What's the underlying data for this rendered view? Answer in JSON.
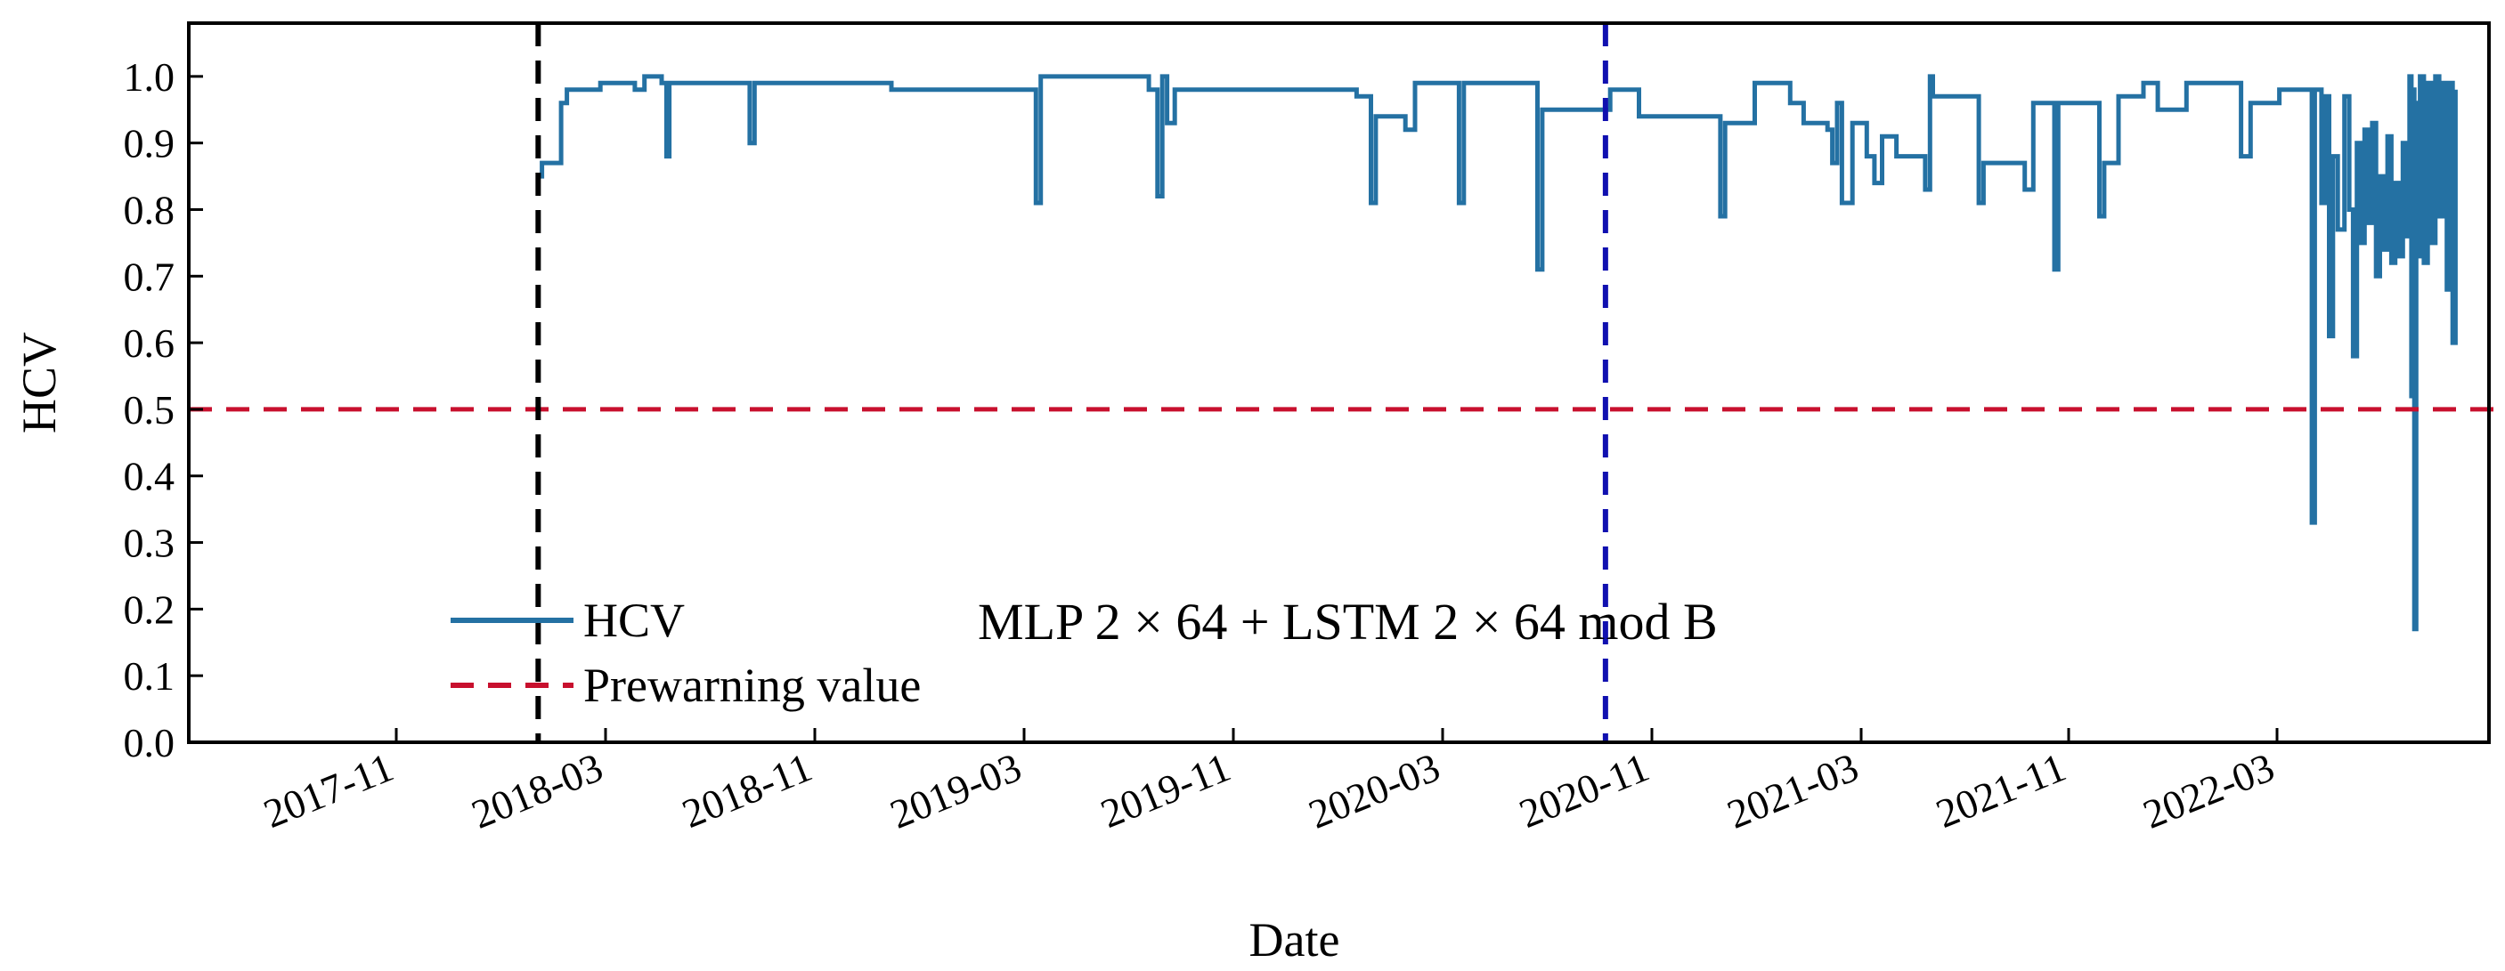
{
  "chart_data": {
    "type": "line",
    "title": "",
    "annotation": "MLP 2 × 64 + LSTM 2 × 64 mod B",
    "xlabel": "Date",
    "ylabel": "HCV",
    "x_tick_labels": [
      "2017-11",
      "2018-03",
      "2018-11",
      "2019-03",
      "2019-11",
      "2020-03",
      "2020-11",
      "2021-03",
      "2021-11",
      "2022-03"
    ],
    "y_tick_labels": [
      "0.0",
      "0.1",
      "0.2",
      "0.3",
      "0.4",
      "0.5",
      "0.6",
      "0.7",
      "0.8",
      "0.9",
      "1.0"
    ],
    "ylim": [
      0.0,
      1.08
    ],
    "xlim": [
      "2016-11-01",
      "2023-06-01"
    ],
    "grid": false,
    "legend_position": "lower-left",
    "colors": {
      "series": "#2471a3",
      "prewarning": "#c8102e",
      "train_start": "#000000",
      "test_start": "#1010b0"
    },
    "series": [
      {
        "name": "HCV",
        "points": [
          [
            "2017-11-01",
            0.85
          ],
          [
            "2017-11-05",
            0.87
          ],
          [
            "2017-11-25",
            0.96
          ],
          [
            "2017-12-01",
            0.98
          ],
          [
            "2018-01-05",
            0.99
          ],
          [
            "2018-02-10",
            0.98
          ],
          [
            "2018-02-20",
            1.0
          ],
          [
            "2018-03-10",
            0.99
          ],
          [
            "2018-03-15",
            0.88
          ],
          [
            "2018-03-18",
            0.99
          ],
          [
            "2018-06-10",
            0.9
          ],
          [
            "2018-06-15",
            0.99
          ],
          [
            "2018-11-01",
            0.99
          ],
          [
            "2018-11-05",
            0.98
          ],
          [
            "2019-03-20",
            0.98
          ],
          [
            "2019-04-05",
            0.81
          ],
          [
            "2019-04-10",
            1.0
          ],
          [
            "2019-08-01",
            0.98
          ],
          [
            "2019-08-10",
            0.82
          ],
          [
            "2019-08-15",
            1.0
          ],
          [
            "2019-08-20",
            0.93
          ],
          [
            "2019-08-28",
            0.98
          ],
          [
            "2020-03-01",
            0.98
          ],
          [
            "2020-03-05",
            0.97
          ],
          [
            "2020-03-15",
            0.97
          ],
          [
            "2020-03-20",
            0.81
          ],
          [
            "2020-03-25",
            0.94
          ],
          [
            "2020-04-20",
            0.94
          ],
          [
            "2020-04-25",
            0.92
          ],
          [
            "2020-05-05",
            0.99
          ],
          [
            "2020-06-15",
            0.99
          ],
          [
            "2020-06-20",
            0.81
          ],
          [
            "2020-06-25",
            0.99
          ],
          [
            "2020-09-05",
            0.99
          ],
          [
            "2020-09-10",
            0.71
          ],
          [
            "2020-09-15",
            0.95
          ],
          [
            "2020-11-20",
            0.95
          ],
          [
            "2020-11-25",
            0.98
          ],
          [
            "2020-12-25",
            0.94
          ],
          [
            "2021-03-15",
            0.94
          ],
          [
            "2021-03-20",
            0.79
          ],
          [
            "2021-03-25",
            0.93
          ],
          [
            "2021-04-20",
            0.93
          ],
          [
            "2021-04-25",
            0.99
          ],
          [
            "2021-06-01",
            0.96
          ],
          [
            "2021-06-15",
            0.93
          ],
          [
            "2021-07-10",
            0.92
          ],
          [
            "2021-07-15",
            0.87
          ],
          [
            "2021-07-20",
            0.96
          ],
          [
            "2021-07-25",
            0.81
          ],
          [
            "2021-08-05",
            0.93
          ],
          [
            "2021-08-20",
            0.88
          ],
          [
            "2021-08-28",
            0.84
          ],
          [
            "2021-09-05",
            0.91
          ],
          [
            "2021-09-20",
            0.88
          ],
          [
            "2021-10-15",
            0.88
          ],
          [
            "2021-10-20",
            0.83
          ],
          [
            "2021-10-25",
            1.0
          ],
          [
            "2021-10-28",
            0.97
          ],
          [
            "2021-12-10",
            0.97
          ],
          [
            "2021-12-15",
            0.81
          ],
          [
            "2021-12-20",
            0.87
          ],
          [
            "2022-01-25",
            0.87
          ],
          [
            "2022-02-01",
            0.83
          ],
          [
            "2022-02-10",
            0.96
          ],
          [
            "2022-03-01",
            0.96
          ],
          [
            "2022-03-04",
            0.71
          ],
          [
            "2022-03-08",
            0.96
          ],
          [
            "2022-04-15",
            0.96
          ],
          [
            "2022-04-20",
            0.79
          ],
          [
            "2022-04-25",
            0.87
          ],
          [
            "2022-05-10",
            0.97
          ],
          [
            "2022-06-05",
            0.99
          ],
          [
            "2022-06-20",
            0.95
          ],
          [
            "2022-07-20",
            0.99
          ],
          [
            "2022-09-10",
            0.99
          ],
          [
            "2022-09-15",
            0.88
          ],
          [
            "2022-09-25",
            0.96
          ],
          [
            "2022-10-25",
            0.98
          ],
          [
            "2022-11-25",
            0.98
          ],
          [
            "2022-11-28",
            0.33
          ],
          [
            "2022-12-01",
            0.98
          ],
          [
            "2022-12-08",
            0.81
          ],
          [
            "2022-12-12",
            0.97
          ],
          [
            "2022-12-16",
            0.61
          ],
          [
            "2022-12-20",
            0.88
          ],
          [
            "2022-12-25",
            0.77
          ],
          [
            "2023-01-01",
            0.97
          ],
          [
            "2023-01-06",
            0.8
          ],
          [
            "2023-01-10",
            0.58
          ],
          [
            "2023-01-14",
            0.9
          ],
          [
            "2023-01-18",
            0.75
          ],
          [
            "2023-01-22",
            0.92
          ],
          [
            "2023-01-26",
            0.78
          ],
          [
            "2023-01-30",
            0.93
          ],
          [
            "2023-02-03",
            0.7
          ],
          [
            "2023-02-07",
            0.85
          ],
          [
            "2023-02-11",
            0.74
          ],
          [
            "2023-02-15",
            0.91
          ],
          [
            "2023-02-19",
            0.72
          ],
          [
            "2023-02-23",
            0.84
          ],
          [
            "2023-02-27",
            0.73
          ],
          [
            "2023-03-03",
            0.9
          ],
          [
            "2023-03-07",
            0.76
          ],
          [
            "2023-03-10",
            1.0
          ],
          [
            "2023-03-12",
            0.52
          ],
          [
            "2023-03-14",
            0.98
          ],
          [
            "2023-03-15",
            0.17
          ],
          [
            "2023-03-17",
            0.96
          ],
          [
            "2023-03-19",
            0.73
          ],
          [
            "2023-03-21",
            1.0
          ],
          [
            "2023-03-25",
            0.72
          ],
          [
            "2023-03-29",
            0.99
          ],
          [
            "2023-04-02",
            0.75
          ],
          [
            "2023-04-06",
            1.0
          ],
          [
            "2023-04-10",
            0.79
          ],
          [
            "2023-04-14",
            0.99
          ],
          [
            "2023-04-18",
            0.68
          ],
          [
            "2023-04-21",
            0.99
          ],
          [
            "2023-04-24",
            0.6
          ],
          [
            "2023-04-27",
            0.98
          ]
        ]
      },
      {
        "name": "Prewarning value",
        "y": 0.5
      }
    ],
    "vertical_markers": [
      "2017-11-01",
      "2020-11-20"
    ]
  }
}
